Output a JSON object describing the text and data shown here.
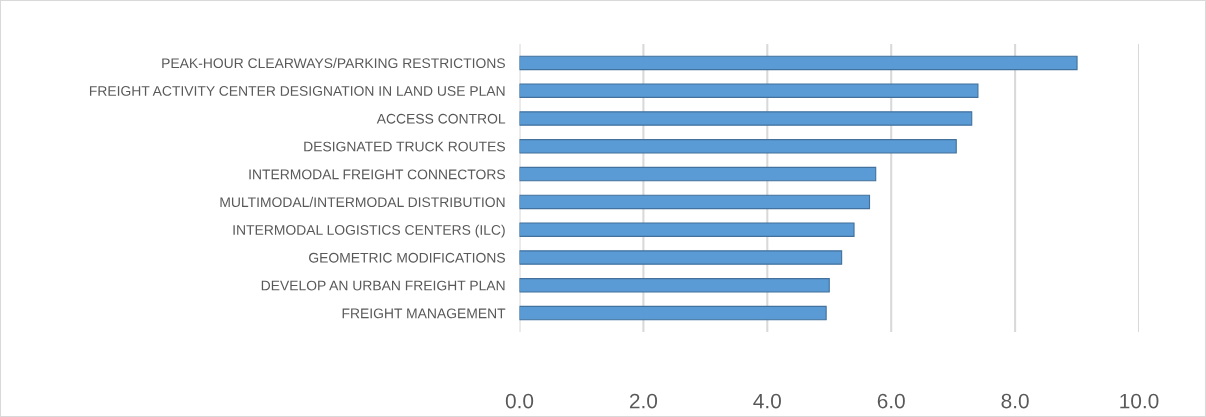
{
  "chart_data": {
    "type": "bar",
    "orientation": "horizontal",
    "categories": [
      "PEAK-HOUR CLEARWAYS/PARKING RESTRICTIONS",
      "FREIGHT ACTIVITY CENTER DESIGNATION IN LAND USE PLAN",
      "ACCESS CONTROL",
      "DESIGNATED TRUCK ROUTES",
      "INTERMODAL FREIGHT CONNECTORS",
      "MULTIMODAL/INTERMODAL DISTRIBUTION",
      "INTERMODAL LOGISTICS CENTERS (ILC)",
      "GEOMETRIC MODIFICATIONS",
      "DEVELOP AN URBAN FREIGHT PLAN",
      "FREIGHT MANAGEMENT"
    ],
    "values": [
      9.0,
      7.4,
      7.3,
      7.05,
      5.75,
      5.65,
      5.4,
      5.2,
      5.0,
      4.95
    ],
    "color": "#5b9bd5",
    "xlim": [
      0,
      10
    ],
    "xticks": [
      {
        "value": 0,
        "label": "0.0"
      },
      {
        "value": 2,
        "label": "2.0"
      },
      {
        "value": 4,
        "label": "4.0"
      },
      {
        "value": 6,
        "label": "6.0"
      },
      {
        "value": 8,
        "label": "8.0"
      },
      {
        "value": 10,
        "label": "10.0"
      }
    ],
    "grid": "x"
  }
}
